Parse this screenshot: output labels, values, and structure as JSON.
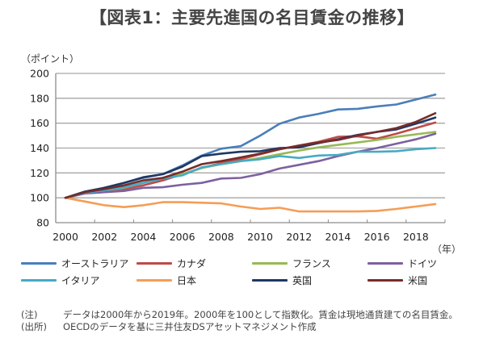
{
  "title": "【図表1：主要先進国の名目賃金の推移】",
  "chart_data": {
    "type": "line",
    "title": "【図表1：主要先進国の名目賃金の推移】",
    "ylabel": "（ポイント）",
    "xlabel": "（年）",
    "ylim": [
      80,
      200
    ],
    "yticks": [
      80,
      100,
      120,
      140,
      160,
      180,
      200
    ],
    "x": [
      2000,
      2001,
      2002,
      2003,
      2004,
      2005,
      2006,
      2007,
      2008,
      2009,
      2010,
      2011,
      2012,
      2013,
      2014,
      2015,
      2016,
      2017,
      2018,
      2019
    ],
    "xtick_labels": [
      "2000",
      "2002",
      "2004",
      "2006",
      "2008",
      "2010",
      "2012",
      "2014",
      "2016",
      "2018"
    ],
    "grid": "horizontal",
    "legend_position": "bottom",
    "series": [
      {
        "name": "オーストラリア",
        "color": "#4a7ebb",
        "values": [
          100,
          105,
          108,
          112,
          116,
          119,
          126,
          134,
          139.5,
          141.5,
          150,
          159.5,
          164.5,
          167.5,
          171,
          171.5,
          173.5,
          175,
          179,
          183
        ]
      },
      {
        "name": "カナダ",
        "color": "#be4b48",
        "values": [
          100,
          104,
          105.5,
          107,
          110,
          114,
          119,
          124,
          128,
          131,
          135,
          139,
          142,
          145,
          149,
          149.5,
          147.5,
          151.5,
          156,
          160.5
        ]
      },
      {
        "name": "フランス",
        "color": "#98b954",
        "values": [
          100,
          104,
          106,
          108,
          112,
          116,
          119,
          124,
          127,
          129.5,
          132,
          135,
          138,
          140.5,
          142.5,
          144.5,
          146.5,
          149,
          151,
          153
        ]
      },
      {
        "name": "ドイツ",
        "color": "#7d60a0",
        "values": [
          100,
          103.5,
          104.5,
          105.5,
          108,
          108.5,
          110.5,
          112,
          115.5,
          116,
          119,
          123.5,
          126.5,
          129.5,
          133.5,
          137,
          140,
          143.5,
          147,
          151.5
        ]
      },
      {
        "name": "イタリア",
        "color": "#46aac5",
        "values": [
          100,
          104,
          106,
          108.5,
          112,
          115.5,
          118,
          124.5,
          127,
          129.5,
          131,
          133.5,
          132,
          134,
          134.5,
          137,
          137,
          137.5,
          139,
          140
        ]
      },
      {
        "name": "日本",
        "color": "#f59d56",
        "values": [
          100,
          97,
          94,
          92.5,
          94,
          96.5,
          96.5,
          96,
          95.5,
          93,
          91,
          92,
          89,
          89,
          89,
          89,
          89.5,
          91,
          93,
          95
        ]
      },
      {
        "name": "英国",
        "color": "#1f3864",
        "values": [
          100,
          105,
          108,
          112,
          116.5,
          119,
          125,
          133.5,
          135.5,
          137,
          137.5,
          140,
          140.5,
          144,
          147,
          150.5,
          153,
          155,
          159.5,
          164.5
        ]
      },
      {
        "name": "米国",
        "color": "#772c2a",
        "values": [
          100,
          104.5,
          107,
          110,
          114,
          116,
          121,
          127,
          129.5,
          132.5,
          135.5,
          139,
          142,
          144.5,
          146.5,
          150,
          153,
          156,
          161,
          168
        ]
      }
    ]
  },
  "notes": [
    {
      "label": "(注)",
      "text": "データは2000年から2019年。2000年を100として指数化。賃金は現地通貨建ての名目賃金。"
    },
    {
      "label": "(出所)",
      "text": "OECDのデータを基に三井住友DSアセットマネジメント作成"
    }
  ]
}
